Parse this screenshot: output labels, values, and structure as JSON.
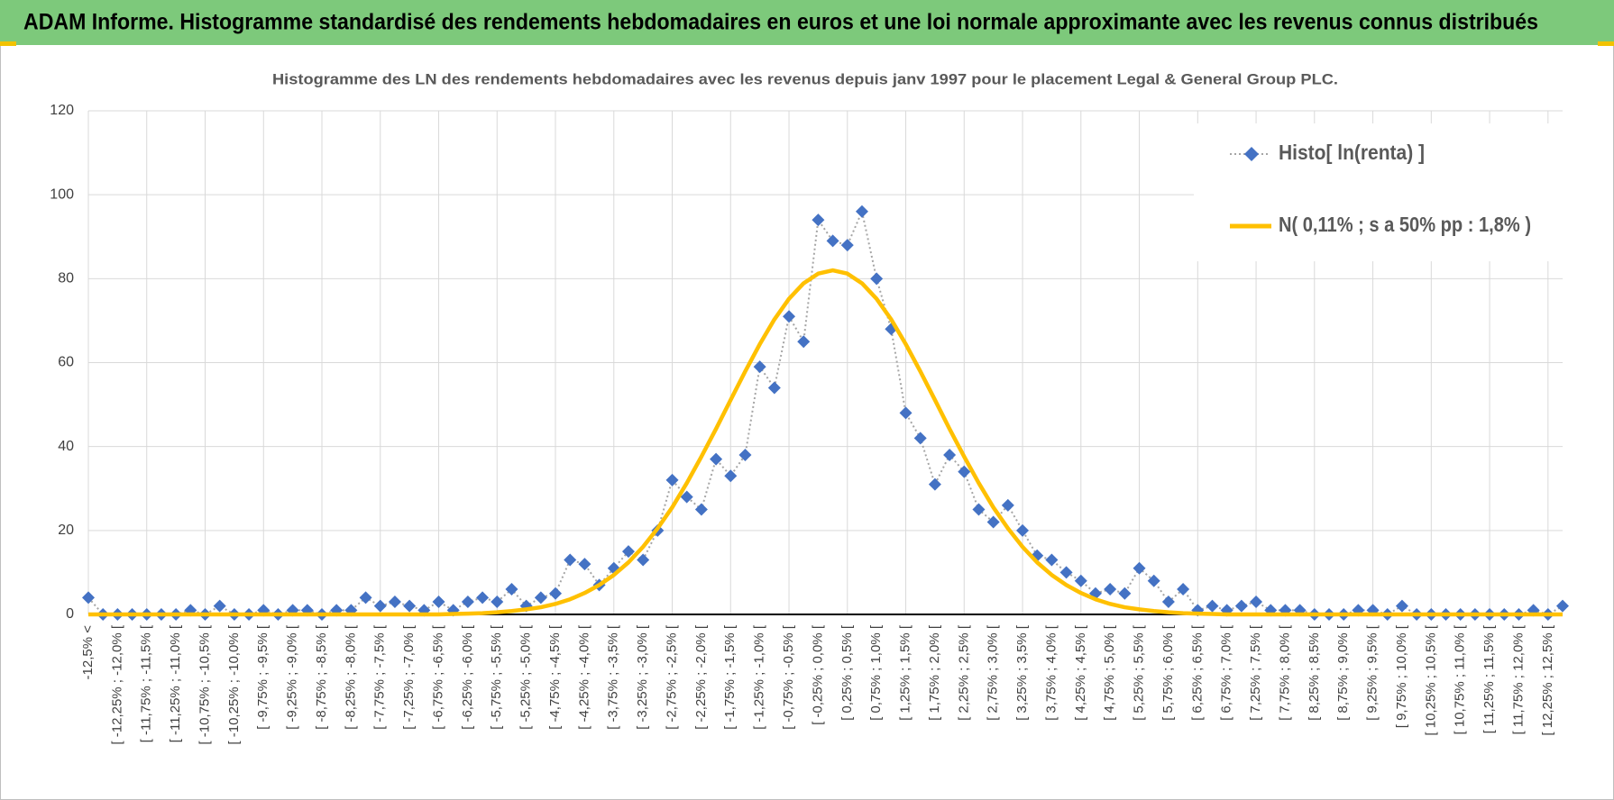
{
  "header": {
    "title": "ADAM Informe. Histogramme standardisé des rendements hebdomadaires en euros et une loi normale approximante avec les revenus connus distribués"
  },
  "chart_data": {
    "type": "line",
    "title": "Histogramme  des LN des rendements hebdomadaires avec les revenus depuis janv 1997 pour le placement Legal & General Group PLC.",
    "categories": [
      "-12,5% <",
      null,
      "[ -12,25% ; -12,0% [",
      null,
      "[ -11,75% ; -11,5% [",
      null,
      "[ -11,25% ; -11,0% [",
      null,
      "[ -10,75% ; -10,5% [",
      null,
      "[ -10,25% ; -10,0% [",
      null,
      "[ -9,75% ; -9,5% [",
      null,
      "[ -9,25% ; -9,0% [",
      null,
      "[ -8,75% ; -8,5% [",
      null,
      "[ -8,25% ; -8,0% [",
      null,
      "[ -7,75% ; -7,5% [",
      null,
      "[ -7,25% ; -7,0% [",
      null,
      "[ -6,75% ; -6,5% [",
      null,
      "[ -6,25% ; -6,0% [",
      null,
      "[ -5,75% ; -5,5% [",
      null,
      "[ -5,25% ; -5,0% [",
      null,
      "[ -4,75% ; -4,5% [",
      null,
      "[ -4,25% ; -4,0% [",
      null,
      "[ -3,75% ; -3,5% [",
      null,
      "[ -3,25% ; -3,0% [",
      null,
      "[ -2,75% ; -2,5% [",
      null,
      "[ -2,25% ; -2,0% [",
      null,
      "[ -1,75% ; -1,5% [",
      null,
      "[ -1,25% ; -1,0% [",
      null,
      "[ -0,75% ; -0,5% [",
      null,
      "[ -0,25% ; 0,0% [",
      null,
      "[ 0,25% ; 0,5% [",
      null,
      "[ 0,75% ; 1,0% [",
      null,
      "[ 1,25% ; 1,5% [",
      null,
      "[ 1,75% ; 2,0% [",
      null,
      "[ 2,25% ; 2,5% [",
      null,
      "[ 2,75% ; 3,0% [",
      null,
      "[ 3,25% ; 3,5% [",
      null,
      "[ 3,75% ; 4,0% [",
      null,
      "[ 4,25% ; 4,5% [",
      null,
      "[ 4,75% ; 5,0% [",
      null,
      "[ 5,25% ; 5,5% [",
      null,
      "[ 5,75% ; 6,0% [",
      null,
      "[ 6,25% ; 6,5% [",
      null,
      "[ 6,75% ; 7,0% [",
      null,
      "[ 7,25% ; 7,5% [",
      null,
      "[ 7,75% ; 8,0% [",
      null,
      "[ 8,25% ; 8,5% [",
      null,
      "[ 8,75% ; 9,0% [",
      null,
      "[ 9,25% ; 9,5% [",
      null,
      "[ 9,75% ; 10,0% [",
      null,
      "[ 10,25% ; 10,5% [",
      null,
      "[ 10,75% ; 11,0% [",
      null,
      "[ 11,25% ; 11,5% [",
      null,
      "[ 11,75% ; 12,0% [",
      null,
      "[ 12,25% ; 12,5% [",
      null
    ],
    "series": [
      {
        "name": "Histo[ ln(renta) ]",
        "color": "#4472c4",
        "line_color": "#a5a5a5",
        "marker": "diamond",
        "values": [
          4,
          0,
          0,
          0,
          0,
          0,
          0,
          1,
          0,
          2,
          0,
          0,
          1,
          0,
          1,
          1,
          0,
          1,
          1,
          4,
          2,
          3,
          2,
          1,
          3,
          1,
          3,
          4,
          3,
          6,
          2,
          4,
          5,
          13,
          12,
          7,
          11,
          15,
          13,
          20,
          32,
          28,
          25,
          37,
          33,
          38,
          59,
          54,
          71,
          65,
          94,
          89,
          88,
          96,
          80,
          68,
          48,
          42,
          31,
          38,
          34,
          25,
          22,
          26,
          20,
          14,
          13,
          10,
          8,
          5,
          6,
          5,
          11,
          8,
          3,
          6,
          1,
          2,
          1,
          2,
          3,
          1,
          1,
          1,
          0,
          0,
          0,
          1,
          1,
          0,
          2,
          0,
          0,
          0,
          0,
          0,
          0,
          0,
          0,
          1,
          0,
          2
        ]
      },
      {
        "name": "N( 0,11% ; s a 50% pp : 1,8% )",
        "color": "#ffc000",
        "marker": "none",
        "values": [
          0,
          0,
          0,
          0,
          0,
          0,
          0,
          0,
          0,
          0,
          0,
          0,
          0,
          0,
          0,
          0,
          0,
          0,
          0,
          0,
          0,
          0,
          0,
          0,
          0,
          0.1,
          0.2,
          0.3,
          0.5,
          0.8,
          1.2,
          1.7,
          2.5,
          3.6,
          5.1,
          7.0,
          9.4,
          12.4,
          16.1,
          20.5,
          25.5,
          31.3,
          37.6,
          44.2,
          51.1,
          57.9,
          64.4,
          70.3,
          75.2,
          78.9,
          81.2,
          82,
          81.2,
          78.9,
          75.2,
          70.3,
          64.4,
          57.9,
          51.1,
          44.2,
          37.6,
          31.3,
          25.5,
          20.5,
          16.1,
          12.4,
          9.4,
          7.0,
          5.1,
          3.6,
          2.5,
          1.7,
          1.2,
          0.8,
          0.5,
          0.3,
          0.2,
          0.1,
          0,
          0,
          0,
          0,
          0,
          0,
          0,
          0,
          0,
          0,
          0,
          0,
          0,
          0,
          0,
          0,
          0,
          0,
          0,
          0,
          0,
          0,
          0,
          0
        ]
      }
    ],
    "ylim": [
      0,
      120
    ],
    "yticks": [
      0,
      20,
      40,
      60,
      80,
      100,
      120
    ],
    "grid": true,
    "legend": "top-right"
  }
}
